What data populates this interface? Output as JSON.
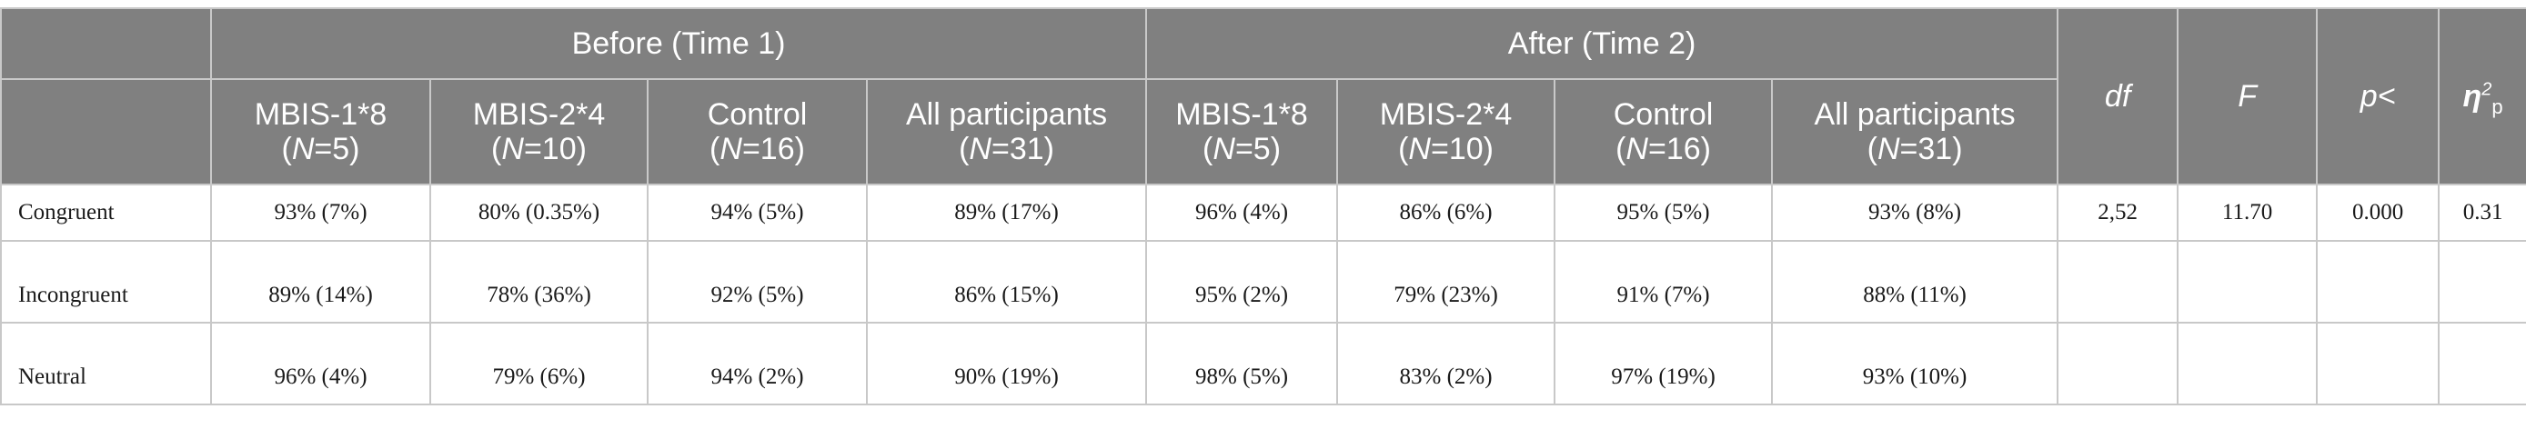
{
  "header": {
    "groups": {
      "before": "Before (Time 1)",
      "after": "After (Time 2)"
    },
    "subcols": {
      "before": [
        {
          "name": "MBIS-1*8",
          "n_label": "N",
          "n_value": "=5)"
        },
        {
          "name": "MBIS-2*4",
          "n_label": "N",
          "n_value": "=10)"
        },
        {
          "name": "Control",
          "n_label": "N",
          "n_value": "=16)"
        },
        {
          "name": "All participants",
          "n_label": "N",
          "n_value": "=31)"
        }
      ],
      "after": [
        {
          "name": "MBIS-1*8",
          "n_label": "N",
          "n_value": "=5)"
        },
        {
          "name": "MBIS-2*4",
          "n_label": "N",
          "n_value": "=10)"
        },
        {
          "name": "Control",
          "n_label": "N",
          "n_value": "=16)"
        },
        {
          "name": "All participants",
          "n_label": "N",
          "n_value": "=31)"
        }
      ]
    },
    "open_paren": "(",
    "stats": {
      "df": "df",
      "F": "F",
      "p": "p<",
      "eta": "η",
      "eta_sup": "2",
      "eta_sub": "p"
    }
  },
  "rows": [
    {
      "label": "Congruent",
      "before": [
        "93% (7%)",
        "80% (0.35%)",
        "94% (5%)",
        "89% (17%)"
      ],
      "after": [
        "96% (4%)",
        "86% (6%)",
        "95% (5%)",
        "93% (8%)"
      ],
      "df": "2,52",
      "F": "11.70",
      "p": "0.000",
      "eta": "0.31"
    },
    {
      "label": "Incongruent",
      "before": [
        "89% (14%)",
        "78% (36%)",
        "92% (5%)",
        "86% (15%)"
      ],
      "after": [
        "95% (2%)",
        "79% (23%)",
        "91% (7%)",
        "88% (11%)"
      ],
      "df": "",
      "F": "",
      "p": "",
      "eta": ""
    },
    {
      "label": "Neutral",
      "before": [
        "96% (4%)",
        "79% (6%)",
        "94% (2%)",
        "90% (19%)"
      ],
      "after": [
        "98% (5%)",
        "83% (2%)",
        "97% (19%)",
        "93% (10%)"
      ],
      "df": "",
      "F": "",
      "p": "",
      "eta": ""
    }
  ]
}
